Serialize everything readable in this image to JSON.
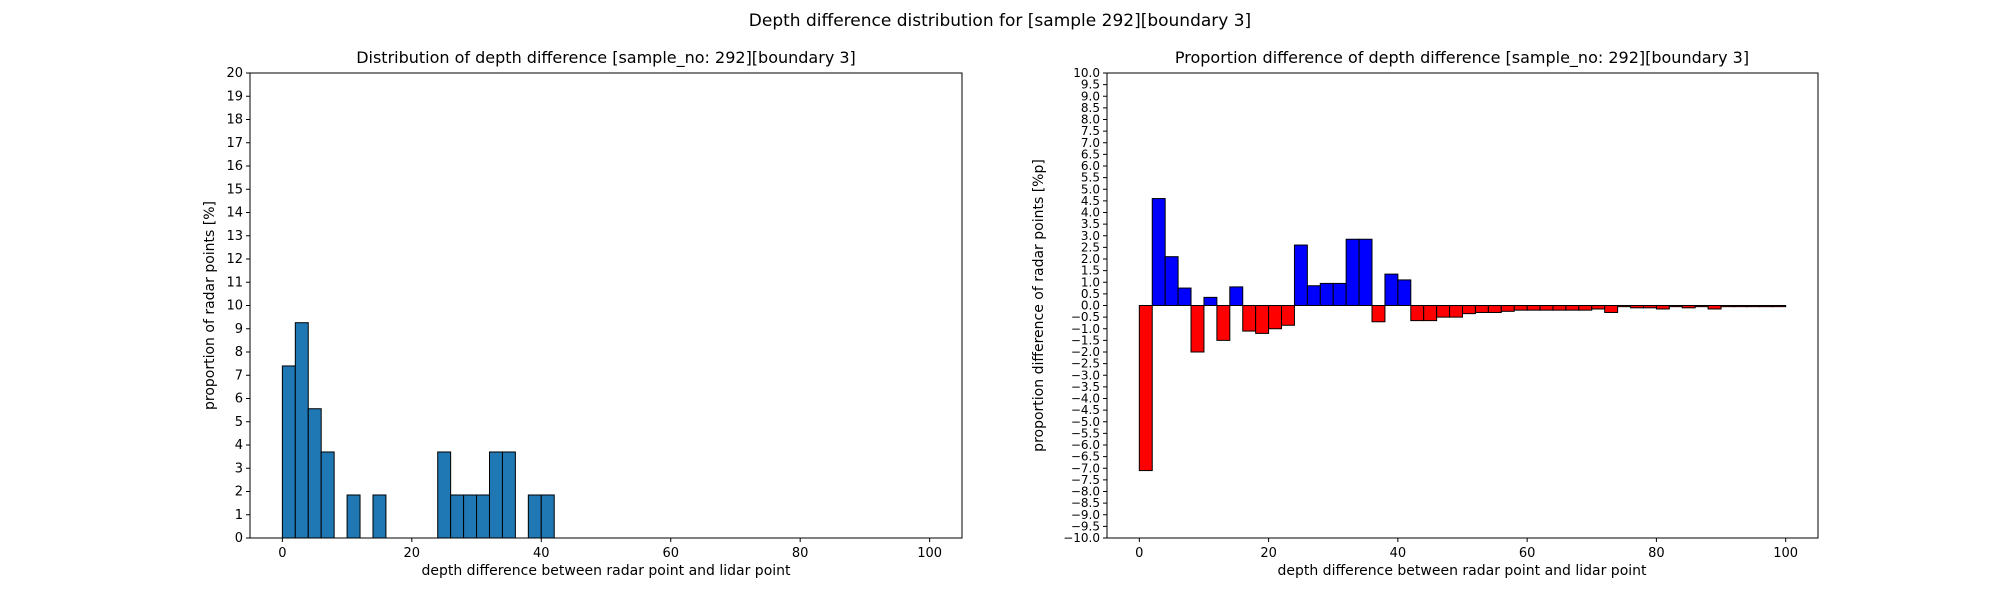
{
  "suptitle": "Depth difference distribution for [sample 292][boundary 3]",
  "chart_data": [
    {
      "type": "bar",
      "title": "Distribution of depth difference [sample_no: 292][boundary 3]",
      "xlabel": "depth difference between radar point and lidar point",
      "ylabel": "proportion of radar points [%]",
      "xlim": [
        -5,
        105
      ],
      "ylim": [
        0,
        20
      ],
      "xticks": [
        0,
        20,
        40,
        60,
        80,
        100
      ],
      "yticks": [
        0,
        1,
        2,
        3,
        4,
        5,
        6,
        7,
        8,
        9,
        10,
        11,
        12,
        13,
        14,
        15,
        16,
        17,
        18,
        19,
        20
      ],
      "bin_width": 2,
      "bar_color": "#1f77b4",
      "edge_color": "#000000",
      "bins": [
        {
          "x": 0,
          "value": 7.4
        },
        {
          "x": 2,
          "value": 9.26
        },
        {
          "x": 4,
          "value": 5.56
        },
        {
          "x": 6,
          "value": 3.7
        },
        {
          "x": 10,
          "value": 1.85
        },
        {
          "x": 14,
          "value": 1.85
        },
        {
          "x": 24,
          "value": 3.7
        },
        {
          "x": 26,
          "value": 1.85
        },
        {
          "x": 28,
          "value": 1.85
        },
        {
          "x": 30,
          "value": 1.85
        },
        {
          "x": 32,
          "value": 3.7
        },
        {
          "x": 34,
          "value": 3.7
        },
        {
          "x": 38,
          "value": 1.85
        },
        {
          "x": 40,
          "value": 1.85
        }
      ]
    },
    {
      "type": "bar",
      "title": "Proportion difference of depth difference [sample_no: 292][boundary 3]",
      "xlabel": "depth difference between radar point and lidar point",
      "ylabel": "proportion difference of radar points [%p]",
      "xlim": [
        -5,
        105
      ],
      "ylim": [
        -10,
        10
      ],
      "xticks": [
        0,
        20,
        40,
        60,
        80,
        100
      ],
      "yticks": [
        "10.0",
        "9.5",
        "9.0",
        "8.5",
        "8.0",
        "7.5",
        "7.0",
        "6.5",
        "6.0",
        "5.5",
        "5.0",
        "4.5",
        "4.0",
        "3.5",
        "3.0",
        "2.5",
        "2.0",
        "1.5",
        "1.0",
        "0.5",
        "0.0",
        "−0.5",
        "−1.0",
        "−1.5",
        "−2.0",
        "−2.5",
        "−3.0",
        "−3.5",
        "−4.0",
        "−4.5",
        "−5.0",
        "−5.5",
        "−6.0",
        "−6.5",
        "−7.0",
        "−7.5",
        "−8.0",
        "−8.5",
        "−9.0",
        "−9.5",
        "−10.0"
      ],
      "bin_width": 2,
      "positive_color": "#0000ff",
      "negative_color": "#ff0000",
      "edge_color": "#000000",
      "bins": [
        {
          "x": 0,
          "value": -7.1
        },
        {
          "x": 2,
          "value": 4.6
        },
        {
          "x": 4,
          "value": 2.1
        },
        {
          "x": 6,
          "value": 0.75
        },
        {
          "x": 8,
          "value": -2.0
        },
        {
          "x": 10,
          "value": 0.35
        },
        {
          "x": 12,
          "value": -1.5
        },
        {
          "x": 14,
          "value": 0.8
        },
        {
          "x": 16,
          "value": -1.1
        },
        {
          "x": 18,
          "value": -1.2
        },
        {
          "x": 20,
          "value": -1.0
        },
        {
          "x": 22,
          "value": -0.85
        },
        {
          "x": 24,
          "value": 2.6
        },
        {
          "x": 26,
          "value": 0.85
        },
        {
          "x": 28,
          "value": 0.95
        },
        {
          "x": 30,
          "value": 0.95
        },
        {
          "x": 32,
          "value": 2.85
        },
        {
          "x": 34,
          "value": 2.85
        },
        {
          "x": 36,
          "value": -0.7
        },
        {
          "x": 38,
          "value": 1.35
        },
        {
          "x": 40,
          "value": 1.1
        },
        {
          "x": 42,
          "value": -0.65
        },
        {
          "x": 44,
          "value": -0.65
        },
        {
          "x": 46,
          "value": -0.5
        },
        {
          "x": 48,
          "value": -0.5
        },
        {
          "x": 50,
          "value": -0.35
        },
        {
          "x": 52,
          "value": -0.3
        },
        {
          "x": 54,
          "value": -0.3
        },
        {
          "x": 56,
          "value": -0.25
        },
        {
          "x": 58,
          "value": -0.2
        },
        {
          "x": 60,
          "value": -0.2
        },
        {
          "x": 62,
          "value": -0.2
        },
        {
          "x": 64,
          "value": -0.2
        },
        {
          "x": 66,
          "value": -0.2
        },
        {
          "x": 68,
          "value": -0.2
        },
        {
          "x": 70,
          "value": -0.15
        },
        {
          "x": 72,
          "value": -0.3
        },
        {
          "x": 74,
          "value": -0.05
        },
        {
          "x": 76,
          "value": -0.1
        },
        {
          "x": 78,
          "value": -0.1
        },
        {
          "x": 80,
          "value": -0.15
        },
        {
          "x": 82,
          "value": -0.05
        },
        {
          "x": 84,
          "value": -0.1
        },
        {
          "x": 86,
          "value": -0.05
        },
        {
          "x": 88,
          "value": -0.15
        },
        {
          "x": 90,
          "value": -0.05
        },
        {
          "x": 92,
          "value": -0.05
        },
        {
          "x": 94,
          "value": -0.05
        },
        {
          "x": 96,
          "value": -0.05
        },
        {
          "x": 98,
          "value": -0.05
        }
      ]
    }
  ]
}
